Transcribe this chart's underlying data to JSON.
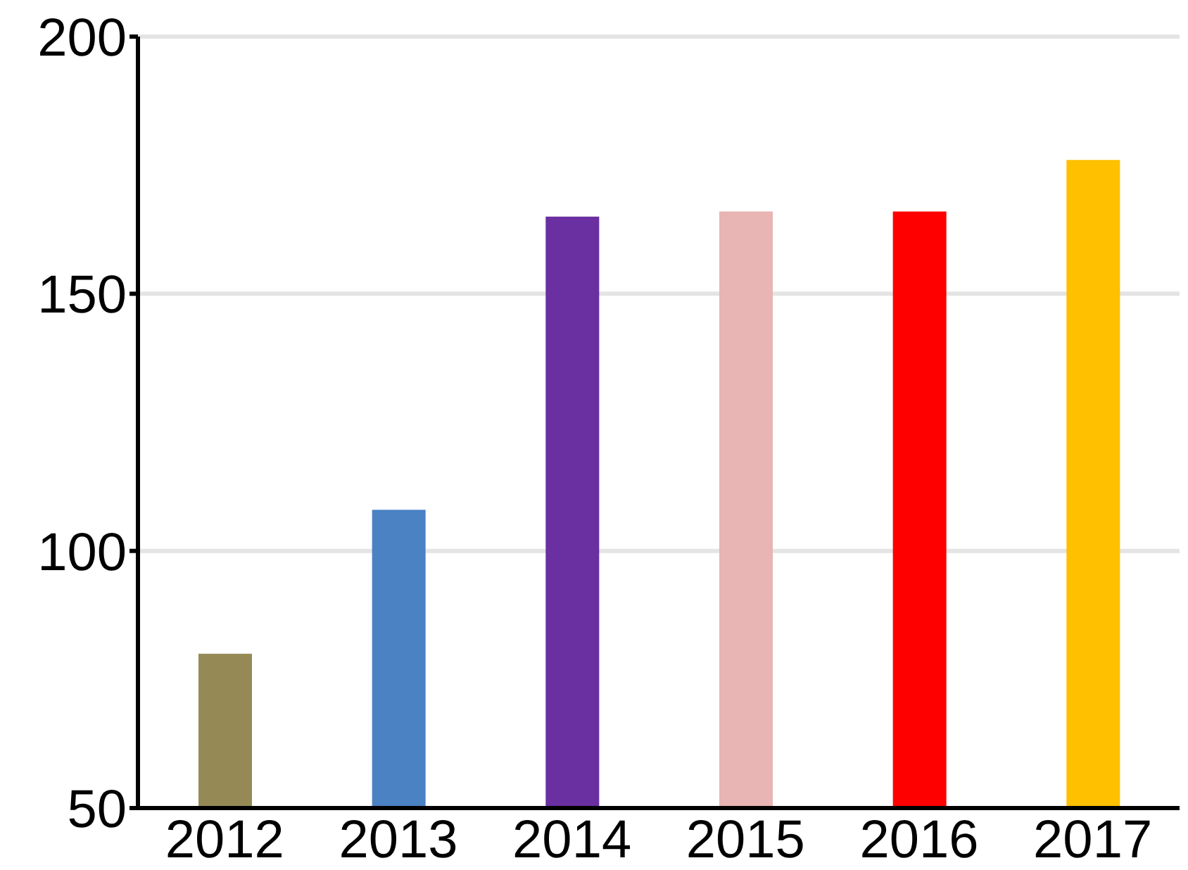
{
  "chart_data": {
    "type": "bar",
    "categories": [
      "2012",
      "2013",
      "2014",
      "2015",
      "2016",
      "2017"
    ],
    "values": [
      80,
      108,
      165,
      166,
      166,
      176
    ],
    "colors": [
      "#958a55",
      "#4a82c4",
      "#6a2fa0",
      "#e8b4b4",
      "#ff0000",
      "#ffc000"
    ],
    "ylim": [
      50,
      200
    ],
    "yticks": [
      50,
      100,
      150,
      200
    ],
    "grid": "y"
  }
}
